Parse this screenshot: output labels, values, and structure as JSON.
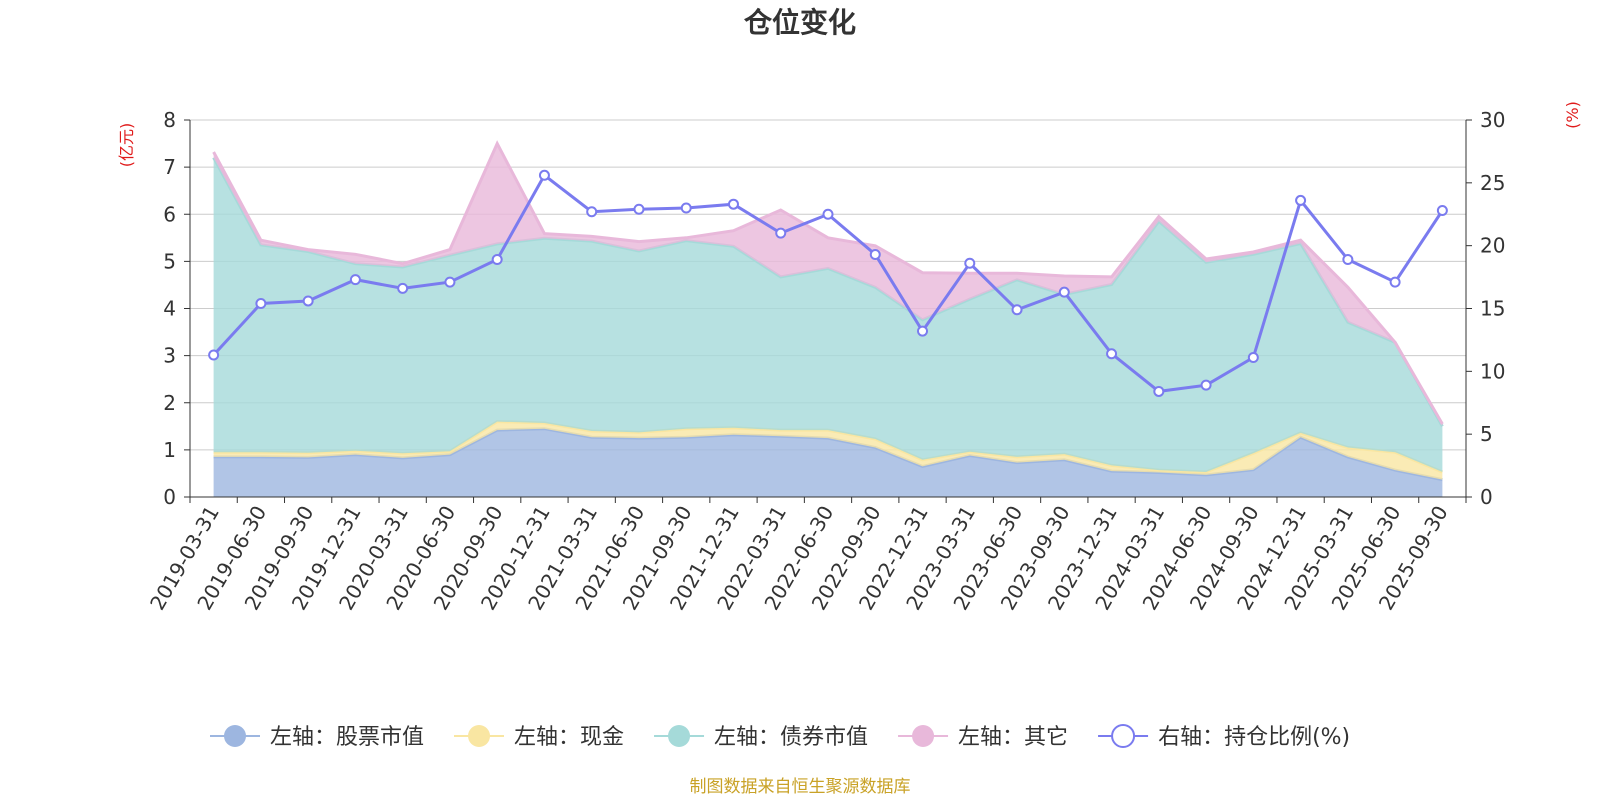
{
  "colors": {
    "stock": "#9db6e0",
    "cash": "#f9e6a2",
    "bond": "#a5dad9",
    "other": "#e8b8da",
    "ratio": "#7a7bef",
    "unit": "#e01b1b",
    "source": "#c9a227",
    "axis": "#333333",
    "grid": "#cccccc"
  },
  "chart_data": {
    "type": "area",
    "title": "仓位变化",
    "left_axis_unit": "(亿元)",
    "right_axis_unit": "(%)",
    "source_note": "制图数据来自恒生聚源数据库",
    "left_ylim": [
      0,
      8
    ],
    "left_ticks": [
      "0",
      "1",
      "2",
      "3",
      "4",
      "5",
      "6",
      "7",
      "8"
    ],
    "right_ylim": [
      0,
      30
    ],
    "right_ticks": [
      "0",
      "5",
      "10",
      "15",
      "20",
      "25",
      "30"
    ],
    "categories": [
      "2019-03-31",
      "2019-06-30",
      "2019-09-30",
      "2019-12-31",
      "2020-03-31",
      "2020-06-30",
      "2020-09-30",
      "2020-12-31",
      "2021-03-31",
      "2021-06-30",
      "2021-09-30",
      "2021-12-31",
      "2022-03-31",
      "2022-06-30",
      "2022-09-30",
      "2022-12-31",
      "2023-03-31",
      "2023-06-30",
      "2023-09-30",
      "2023-12-31",
      "2024-03-31",
      "2024-06-30",
      "2024-09-30",
      "2024-12-31",
      "2025-03-31",
      "2025-06-30",
      "2025-09-30"
    ],
    "series": [
      {
        "name": "左轴：股票市值",
        "key": "stock",
        "axis": "left",
        "stacked": true,
        "values": [
          0.85,
          0.85,
          0.84,
          0.9,
          0.83,
          0.9,
          1.42,
          1.45,
          1.27,
          1.25,
          1.27,
          1.32,
          1.29,
          1.25,
          1.05,
          0.65,
          0.88,
          0.73,
          0.79,
          0.55,
          0.52,
          0.47,
          0.58,
          1.27,
          0.85,
          0.57,
          0.37
        ]
      },
      {
        "name": "左轴：现金",
        "key": "cash",
        "axis": "left",
        "stacked": true,
        "values": [
          0.1,
          0.1,
          0.1,
          0.08,
          0.1,
          0.07,
          0.18,
          0.12,
          0.13,
          0.12,
          0.18,
          0.15,
          0.13,
          0.17,
          0.18,
          0.14,
          0.08,
          0.12,
          0.12,
          0.12,
          0.05,
          0.06,
          0.35,
          0.09,
          0.2,
          0.38,
          0.16
        ]
      },
      {
        "name": "左轴：债券市值",
        "key": "bond",
        "axis": "left",
        "stacked": true,
        "values": [
          6.25,
          4.4,
          4.27,
          3.97,
          3.95,
          4.16,
          3.77,
          3.92,
          4.03,
          3.85,
          3.99,
          3.85,
          3.25,
          3.43,
          3.22,
          2.97,
          3.24,
          3.76,
          3.39,
          3.84,
          5.28,
          4.45,
          4.22,
          4.02,
          2.66,
          2.33,
          0.97
        ]
      },
      {
        "name": "左轴：其它",
        "key": "other",
        "axis": "left",
        "stacked": true,
        "values": [
          0.12,
          0.1,
          0.04,
          0.2,
          0.07,
          0.12,
          2.13,
          0.1,
          0.1,
          0.2,
          0.06,
          0.33,
          1.42,
          0.65,
          0.88,
          1.0,
          0.55,
          0.14,
          0.39,
          0.16,
          0.1,
          0.07,
          0.05,
          0.07,
          0.74,
          0.0,
          0.05
        ]
      },
      {
        "name": "右轴：持仓比例(%)",
        "key": "ratio",
        "axis": "right",
        "type": "line",
        "values": [
          11.3,
          15.4,
          15.6,
          17.3,
          16.6,
          17.1,
          18.9,
          25.6,
          22.7,
          22.9,
          23.0,
          23.3,
          21.0,
          22.5,
          19.3,
          13.2,
          18.6,
          14.9,
          16.3,
          11.4,
          8.4,
          8.9,
          11.1,
          23.6,
          18.9,
          17.1,
          22.8
        ]
      }
    ]
  }
}
